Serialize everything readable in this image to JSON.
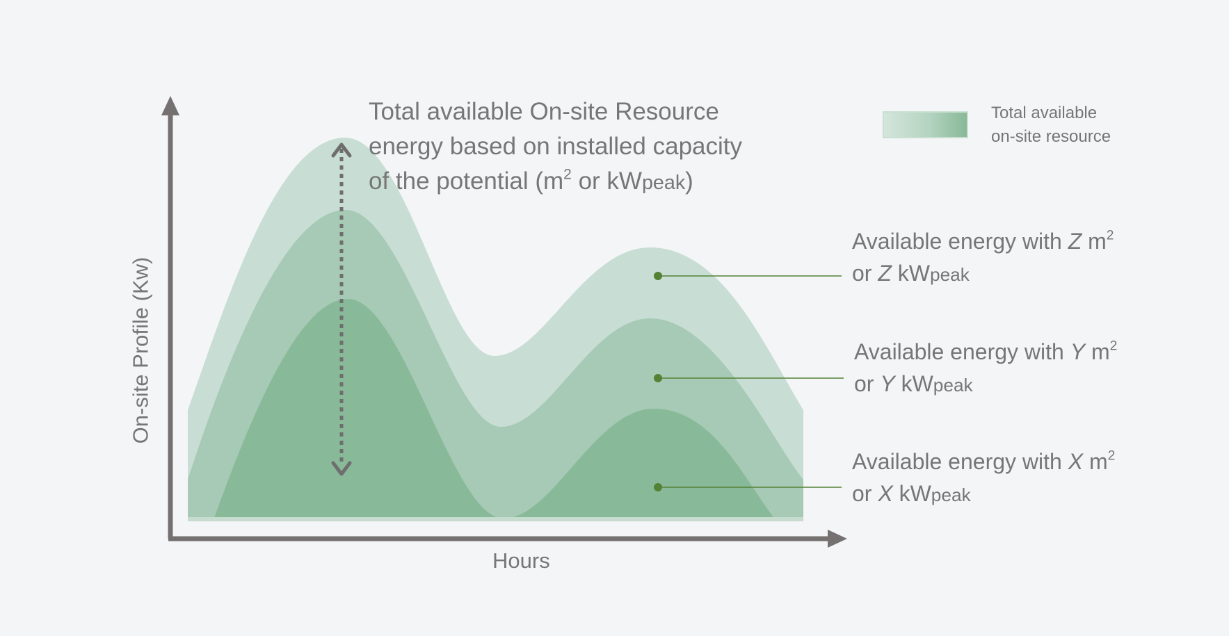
{
  "axes": {
    "x_label": "Hours",
    "y_label": "On-site Profile (Kw)"
  },
  "annotation": {
    "line1": "Total available On-site Resource",
    "line2": "energy based on installed capacity",
    "line3_pre": "of the potential (m",
    "line3_sup": "2",
    "line3_mid": " or kW",
    "line3_sub": "peak",
    "line3_post": ")"
  },
  "legend": {
    "line1": "Total available",
    "line2": "on-site resource"
  },
  "callouts": {
    "z": {
      "pre": "Available energy with ",
      "var": "Z",
      "unit": " m",
      "sup": "2",
      "or": "or ",
      "kw": " kW",
      "sub": "peak"
    },
    "y": {
      "pre": "Available energy with ",
      "var": "Y",
      "unit": " m",
      "sup": "2",
      "or": "or ",
      "kw": " kW",
      "sub": "peak"
    },
    "x": {
      "pre": "Available energy with ",
      "var": "X",
      "unit": " m",
      "sup": "2",
      "or": "or ",
      "kw": " kW",
      "sub": "peak"
    }
  },
  "colors": {
    "background": "#f4f5f7",
    "text": "#767676",
    "axis": "#767171",
    "layer_light": "#c8ddd3",
    "layer_mid": "#a6cab5",
    "layer_dark": "#88b998",
    "leader_line": "#548235",
    "legend_gradient_start": "#d4e6dc",
    "legend_gradient_end": "#86b996"
  }
}
